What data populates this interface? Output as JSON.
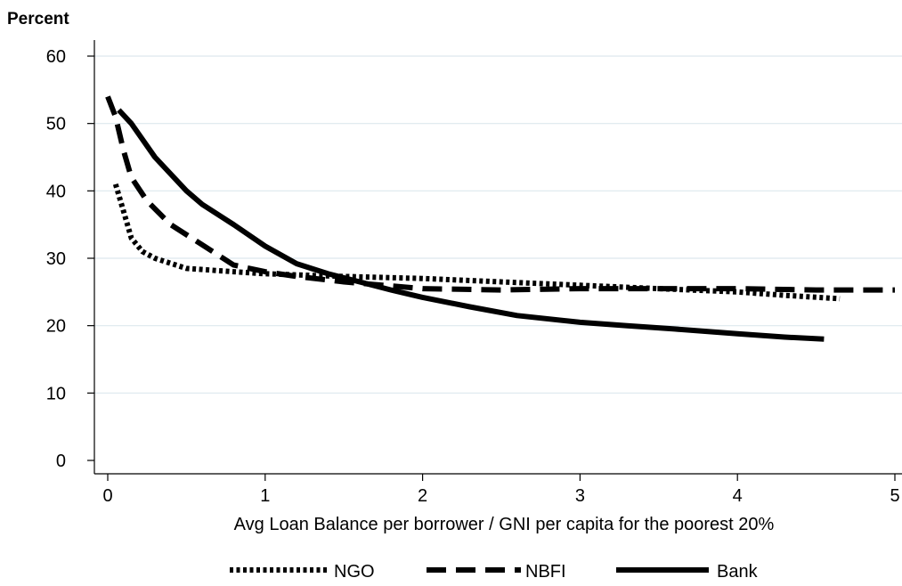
{
  "chart_data": {
    "type": "line",
    "ylabel": "Percent",
    "xlabel": "Avg Loan Balance per borrower / GNI per capita for the poorest 20%",
    "xlim": [
      0,
      5
    ],
    "ylim": [
      0,
      60
    ],
    "xticks": [
      0,
      1,
      2,
      3,
      4,
      5
    ],
    "yticks": [
      0,
      10,
      20,
      30,
      40,
      50,
      60
    ],
    "grid": "horizontal",
    "legend_position": "bottom",
    "series": [
      {
        "name": "NGO",
        "style": "dotted",
        "color": "#000000",
        "points": [
          [
            0.05,
            41
          ],
          [
            0.1,
            37
          ],
          [
            0.15,
            33
          ],
          [
            0.22,
            31
          ],
          [
            0.3,
            30
          ],
          [
            0.5,
            28.5
          ],
          [
            0.8,
            28
          ],
          [
            1.0,
            27.7
          ],
          [
            1.5,
            27.3
          ],
          [
            2.0,
            27
          ],
          [
            2.5,
            26.5
          ],
          [
            3.0,
            26
          ],
          [
            3.5,
            25.5
          ],
          [
            4.0,
            25
          ],
          [
            4.3,
            24.5
          ],
          [
            4.65,
            24
          ]
        ]
      },
      {
        "name": "NBFI",
        "style": "dashed",
        "color": "#000000",
        "points": [
          [
            0.0,
            54
          ],
          [
            0.05,
            51
          ],
          [
            0.1,
            46
          ],
          [
            0.15,
            42
          ],
          [
            0.25,
            38.5
          ],
          [
            0.4,
            35
          ],
          [
            0.6,
            32
          ],
          [
            0.8,
            29
          ],
          [
            1.0,
            28
          ],
          [
            1.2,
            27.3
          ],
          [
            1.5,
            26.5
          ],
          [
            2.0,
            25.5
          ],
          [
            2.5,
            25.3
          ],
          [
            3.0,
            25.5
          ],
          [
            3.5,
            25.5
          ],
          [
            4.0,
            25.5
          ],
          [
            4.5,
            25.3
          ],
          [
            5.0,
            25.3
          ]
        ]
      },
      {
        "name": "Bank",
        "style": "solid",
        "color": "#000000",
        "points": [
          [
            0.07,
            52
          ],
          [
            0.15,
            50
          ],
          [
            0.3,
            45
          ],
          [
            0.5,
            40
          ],
          [
            0.6,
            38
          ],
          [
            0.8,
            35
          ],
          [
            1.0,
            31.8
          ],
          [
            1.2,
            29.2
          ],
          [
            1.4,
            27.7
          ],
          [
            1.6,
            26.5
          ],
          [
            1.8,
            25.3
          ],
          [
            2.0,
            24.2
          ],
          [
            2.3,
            22.8
          ],
          [
            2.6,
            21.5
          ],
          [
            3.0,
            20.5
          ],
          [
            3.3,
            20
          ],
          [
            3.6,
            19.5
          ],
          [
            4.0,
            18.8
          ],
          [
            4.3,
            18.3
          ],
          [
            4.55,
            18
          ]
        ]
      }
    ]
  }
}
